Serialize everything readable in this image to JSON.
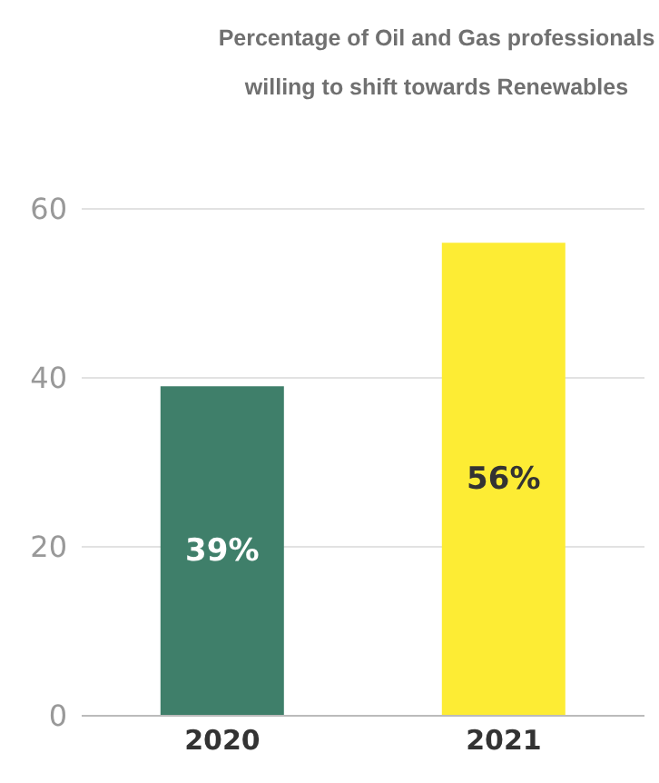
{
  "chart_data": {
    "type": "bar",
    "title": "Percentage of Oil and Gas professionals willing to shift towards Renewables",
    "categories": [
      "2020",
      "2021"
    ],
    "values": [
      39,
      56
    ],
    "colors": [
      "#3f7f6a",
      "#fdec34"
    ],
    "value_labels": [
      "39%",
      "56%"
    ],
    "ylim": [
      0,
      60
    ],
    "yticks": [
      0,
      20,
      40,
      60
    ],
    "grid": "y"
  }
}
